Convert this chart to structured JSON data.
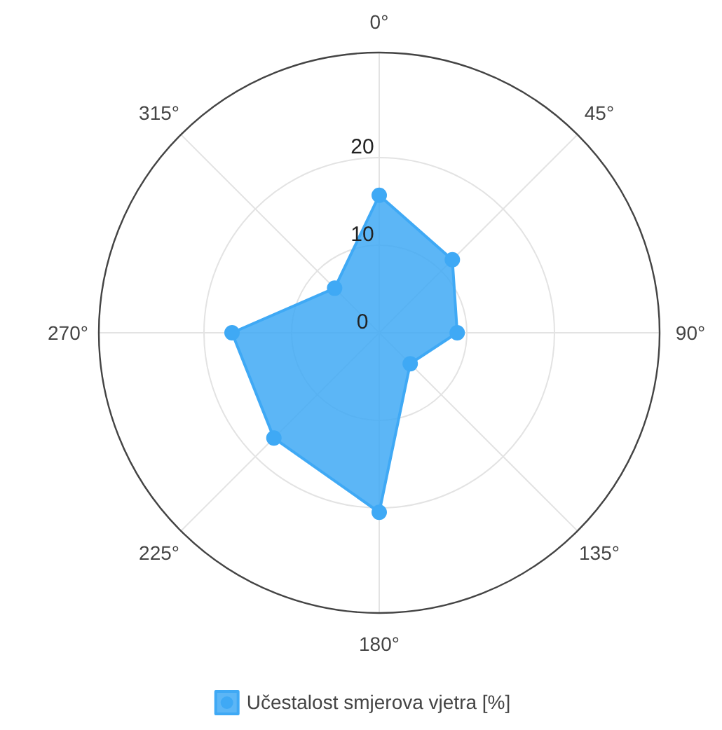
{
  "chart_data": {
    "type": "radar",
    "categories": [
      "0°",
      "45°",
      "90°",
      "135°",
      "180°",
      "225°",
      "270°",
      "315°"
    ],
    "series": [
      {
        "name": "Učestalost smjerova vjetra [%]",
        "color": "#3fa9f5",
        "values": [
          15.7,
          11.8,
          8.9,
          5.0,
          20.5,
          17.0,
          16.8,
          7.2
        ]
      }
    ],
    "ylim": [
      0,
      32
    ],
    "yticks": [
      0,
      10,
      20
    ],
    "grid": true,
    "legend": "bottom",
    "marker": "circle"
  }
}
